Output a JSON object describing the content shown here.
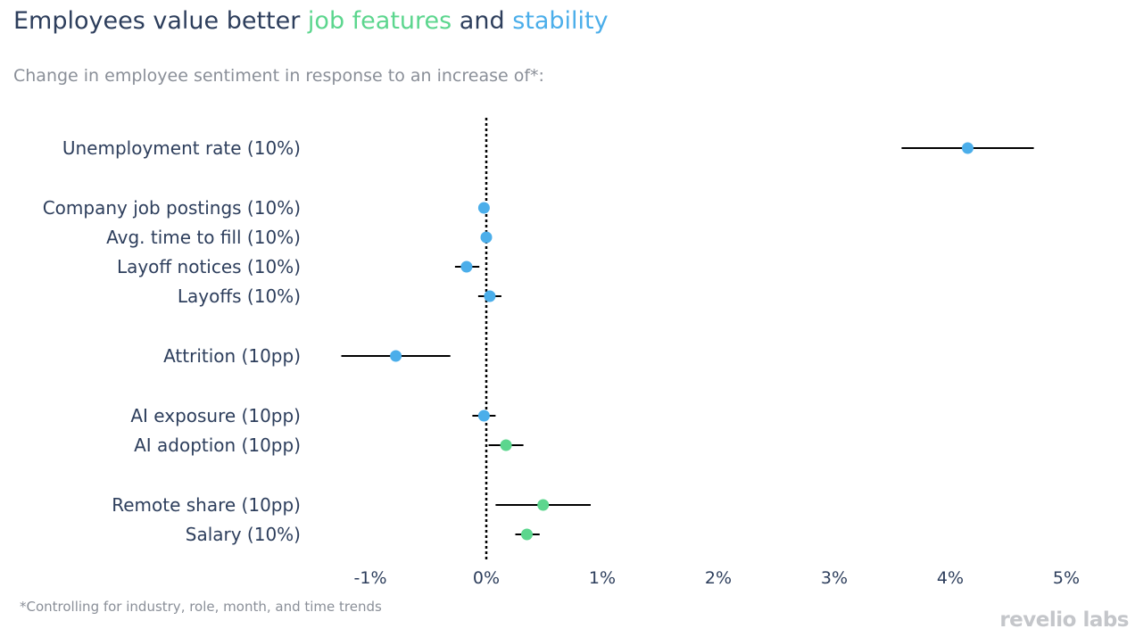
{
  "title": {
    "prefix": "Employees value better ",
    "highlight1": "job features",
    "middle": " and ",
    "highlight2": "stability"
  },
  "subtitle": "Change in employee sentiment in response to an increase of*:",
  "footnote": "*Controlling for industry, role, month, and time trends",
  "logo": "revelio labs",
  "colors": {
    "job_features": "#5cd68e",
    "stability": "#4baeea",
    "text": "#2d3e5c",
    "muted": "#8a8f98",
    "error_bar": "#000000"
  },
  "chart_data": {
    "type": "scatter",
    "subtype": "coefficient-plot-with-error-bars",
    "x_tick_labels": [
      "-1%",
      "0%",
      "1%",
      "2%",
      "3%",
      "4%",
      "5%"
    ],
    "x_ticks": [
      -1,
      0,
      1,
      2,
      3,
      4,
      5
    ],
    "xlim": [
      -1.25,
      5.1
    ],
    "reference_line": 0,
    "legend": "none",
    "grid": false,
    "points": [
      {
        "label": "Unemployment rate (10%)",
        "value": 4.15,
        "low": 3.58,
        "high": 4.72,
        "group": "stability"
      },
      {
        "label": "Company job postings (10%)",
        "value": -0.02,
        "low": -0.06,
        "high": 0.02,
        "group": "stability"
      },
      {
        "label": "Avg. time to fill (10%)",
        "value": 0.0,
        "low": -0.03,
        "high": 0.03,
        "group": "stability"
      },
      {
        "label": "Layoff notices (10%)",
        "value": -0.17,
        "low": -0.27,
        "high": -0.06,
        "group": "stability"
      },
      {
        "label": "Layoffs (10%)",
        "value": 0.03,
        "low": -0.07,
        "high": 0.13,
        "group": "stability"
      },
      {
        "label": "Attrition (10pp)",
        "value": -0.78,
        "low": -1.25,
        "high": -0.31,
        "group": "stability"
      },
      {
        "label": "AI exposure (10pp)",
        "value": -0.02,
        "low": -0.12,
        "high": 0.08,
        "group": "stability"
      },
      {
        "label": "AI adoption (10pp)",
        "value": 0.17,
        "low": 0.02,
        "high": 0.32,
        "group": "job_features"
      },
      {
        "label": "Remote share (10pp)",
        "value": 0.49,
        "low": 0.08,
        "high": 0.9,
        "group": "job_features"
      },
      {
        "label": "Salary (10%)",
        "value": 0.35,
        "low": 0.25,
        "high": 0.46,
        "group": "job_features"
      }
    ]
  }
}
